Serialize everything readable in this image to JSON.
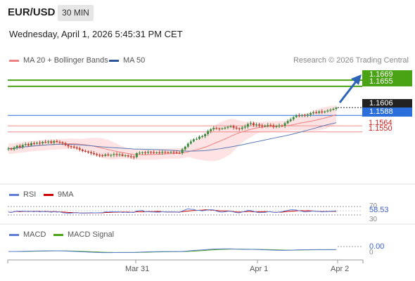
{
  "header": {
    "symbol": "EUR/USD",
    "timeframe": "30 MIN",
    "datetime": "Wednesday, April 1, 2026 5:45:31 PM CET"
  },
  "legend": {
    "items": [
      {
        "label": "MA 20 + Bollinger Bands",
        "color": "#f08080"
      },
      {
        "label": "MA 50",
        "color": "#2c5597"
      }
    ],
    "credit": "Research © 2026 Trading Central"
  },
  "colors": {
    "up": "#3f8a3f",
    "down": "#c0392b",
    "bb_fill": "#fde3e3",
    "ma20": "#f08080",
    "ma50": "#5b7bb5",
    "target_green": "#4aa315",
    "pivot_blue": "#2a6fdb",
    "support_red": "#f08a8a"
  },
  "chart_data": [
    {
      "type": "candlestick",
      "title": "EUR/USD",
      "ylim": [
        1.143,
        1.17
      ],
      "x_ticks": [
        "Mar 31",
        "Apr 1",
        "Apr 2"
      ],
      "last_price": 1.1606,
      "close_series": [
        1.1512,
        1.151,
        1.1514,
        1.1518,
        1.1515,
        1.152,
        1.1522,
        1.1519,
        1.1524,
        1.1523,
        1.1525,
        1.1524,
        1.1527,
        1.1526,
        1.1528,
        1.1525,
        1.1529,
        1.1527,
        1.1526,
        1.1524,
        1.152,
        1.1517,
        1.1516,
        1.1514,
        1.1512,
        1.1509,
        1.1506,
        1.1505,
        1.1503,
        1.1501,
        1.1499,
        1.1497,
        1.1496,
        1.1495,
        1.1498,
        1.1496,
        1.1497,
        1.1499,
        1.1497,
        1.1498,
        1.1495,
        1.1496,
        1.1494,
        1.1493,
        1.1492,
        1.1501,
        1.1502,
        1.1503,
        1.1502,
        1.1504,
        1.1503,
        1.1502,
        1.1503,
        1.1502,
        1.1504,
        1.1503,
        1.1502,
        1.1504,
        1.1503,
        1.1502,
        1.1501,
        1.151,
        1.1516,
        1.1523,
        1.1528,
        1.1533,
        1.1534,
        1.1539,
        1.154,
        1.1545,
        1.1552,
        1.1556,
        1.1559,
        1.1558,
        1.1557,
        1.1558,
        1.156,
        1.1562,
        1.1563,
        1.156,
        1.1558,
        1.1557,
        1.156,
        1.1562,
        1.1568,
        1.157,
        1.1566,
        1.1567,
        1.1565,
        1.1563,
        1.1564,
        1.1566,
        1.1565,
        1.1562,
        1.1563,
        1.1565,
        1.1564,
        1.157,
        1.1575,
        1.1579,
        1.1584,
        1.1588,
        1.1587,
        1.1589,
        1.1588,
        1.159,
        1.1593,
        1.1595,
        1.1594,
        1.1597,
        1.1595,
        1.1597,
        1.1599,
        1.1601,
        1.1603,
        1.1606
      ],
      "lines": [
        {
          "label": "1.1669",
          "value": 1.1669,
          "color": "#4aa315"
        },
        {
          "label": "1.1655",
          "value": 1.1655,
          "color": "#4aa315"
        },
        {
          "label": "1.1606",
          "value": 1.1606,
          "color": "#222222"
        },
        {
          "label": "1.1588",
          "value": 1.1588,
          "color": "#2a6fdb"
        },
        {
          "label": "1.1564",
          "value": 1.1564,
          "color": "#f08a8a"
        },
        {
          "label": "1.1550",
          "value": 1.155,
          "color": "#f08a8a"
        }
      ]
    },
    {
      "type": "line",
      "title": "RSI",
      "series": [
        {
          "name": "RSI",
          "color": "#5b7bd5"
        },
        {
          "name": "9MA",
          "color": "#cc0000"
        }
      ],
      "levels": [
        70,
        30
      ],
      "last_value": "58.53"
    },
    {
      "type": "line",
      "title": "MACD",
      "series": [
        {
          "name": "MACD",
          "color": "#5b7bd5"
        },
        {
          "name": "MACD Signal",
          "color": "#4aa315"
        }
      ],
      "zero_label": "0",
      "last_value": "0.00"
    }
  ]
}
